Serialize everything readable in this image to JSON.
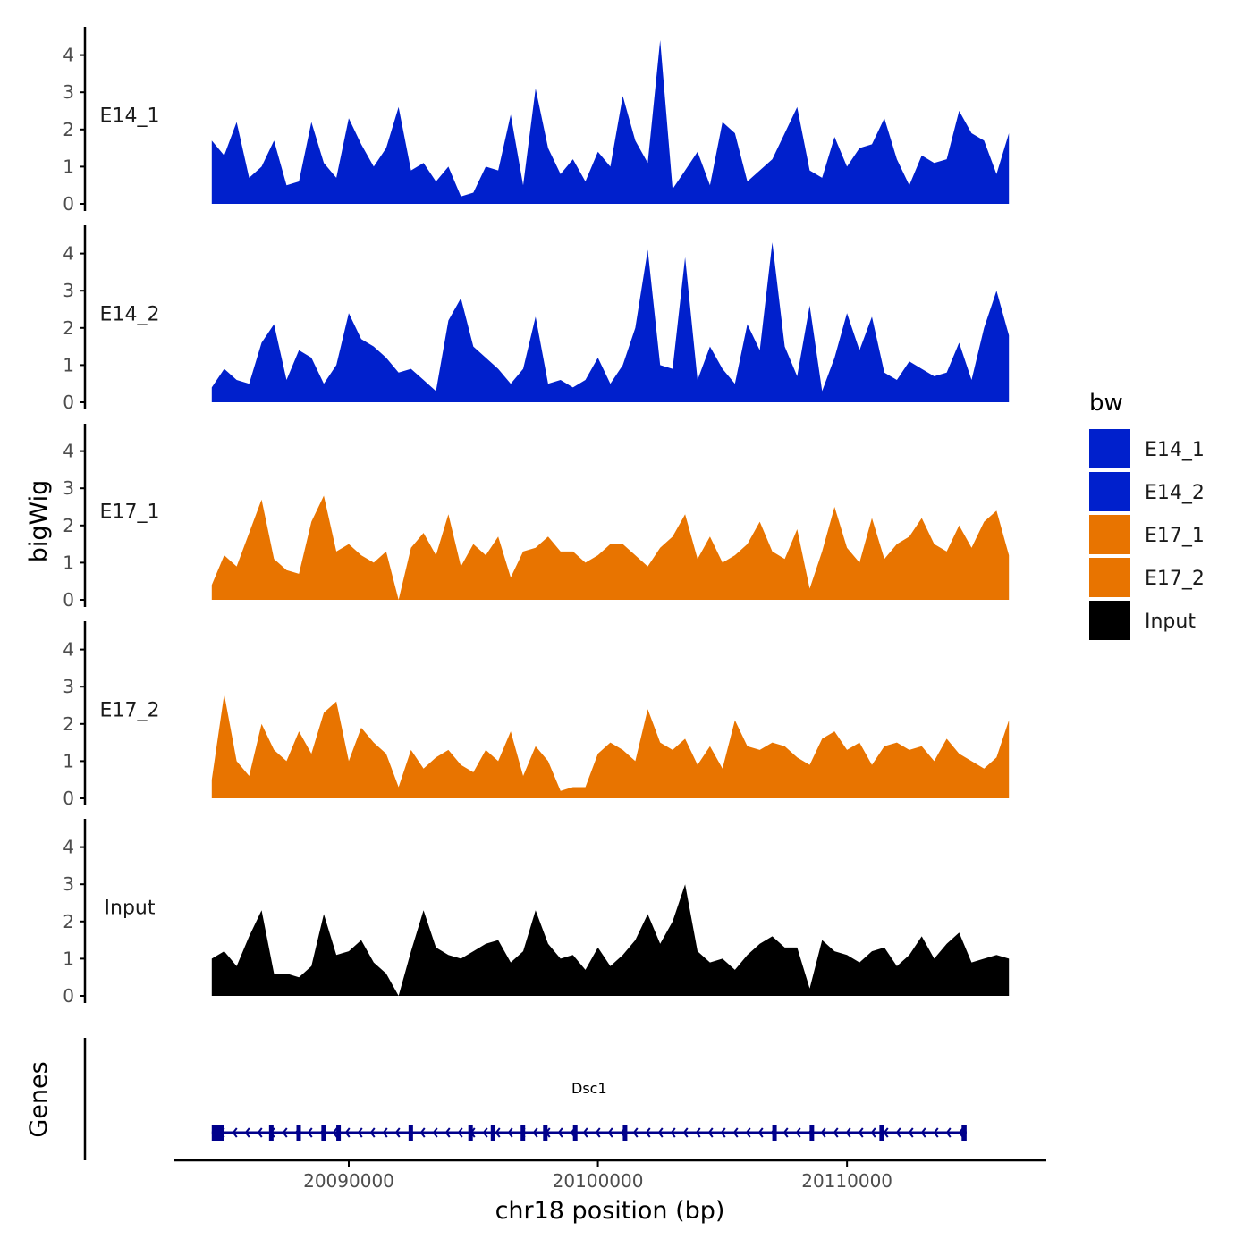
{
  "colors": {
    "blue": "#0020CC",
    "orange": "#E87400",
    "black": "#000000",
    "gene": "#00008B",
    "axis": "#000000",
    "tick_text": "#4d4d4d"
  },
  "chart_data": {
    "type": "area",
    "xlabel": "chr18 position (bp)",
    "ylabel": "bigWig",
    "genes_label": "Genes",
    "xlim": [
      20083000,
      20118000
    ],
    "x_ticks": [
      20090000,
      20100000,
      20110000
    ],
    "x_tick_labels": [
      "20090000",
      "20100000",
      "20110000"
    ],
    "ylim": [
      0,
      4.6
    ],
    "y_ticks": [
      0,
      1,
      2,
      3,
      4
    ],
    "y_tick_labels": [
      "0",
      "1",
      "2",
      "3",
      "4"
    ],
    "x": [
      20084500,
      20085000,
      20085500,
      20086000,
      20086500,
      20087000,
      20087500,
      20088000,
      20088500,
      20089000,
      20089500,
      20090000,
      20090500,
      20091000,
      20091500,
      20092000,
      20092500,
      20093000,
      20093500,
      20094000,
      20094500,
      20095000,
      20095500,
      20096000,
      20096500,
      20097000,
      20097500,
      20098000,
      20098500,
      20099000,
      20099500,
      20100000,
      20100500,
      20101000,
      20101500,
      20102000,
      20102500,
      20103000,
      20103500,
      20104000,
      20104500,
      20105000,
      20105500,
      20106000,
      20106500,
      20107000,
      20107500,
      20108000,
      20108500,
      20109000,
      20109500,
      20110000,
      20110500,
      20111000,
      20111500,
      20112000,
      20112500,
      20113000,
      20113500,
      20114000,
      20114500,
      20115000,
      20115500,
      20116000,
      20116500
    ],
    "series": [
      {
        "name": "E14_1",
        "color": "#0020CC",
        "values": [
          1.7,
          1.3,
          2.2,
          0.7,
          1.0,
          1.7,
          0.5,
          0.6,
          2.2,
          1.1,
          0.7,
          2.3,
          1.6,
          1.0,
          1.5,
          2.6,
          0.9,
          1.1,
          0.6,
          1.0,
          0.2,
          0.3,
          1.0,
          0.9,
          2.4,
          0.5,
          3.1,
          1.5,
          0.8,
          1.2,
          0.6,
          1.4,
          1.0,
          2.9,
          1.7,
          1.1,
          4.4,
          0.4,
          0.9,
          1.4,
          0.5,
          2.2,
          1.9,
          0.6,
          0.9,
          1.2,
          1.9,
          2.6,
          0.9,
          0.7,
          1.8,
          1.0,
          1.5,
          1.6,
          2.3,
          1.2,
          0.5,
          1.3,
          1.1,
          1.2,
          2.5,
          1.9,
          1.7,
          0.8,
          1.9
        ]
      },
      {
        "name": "E14_2",
        "color": "#0020CC",
        "values": [
          0.4,
          0.9,
          0.6,
          0.5,
          1.6,
          2.1,
          0.6,
          1.4,
          1.2,
          0.5,
          1.0,
          2.4,
          1.7,
          1.5,
          1.2,
          0.8,
          0.9,
          0.6,
          0.3,
          2.2,
          2.8,
          1.5,
          1.2,
          0.9,
          0.5,
          0.9,
          2.3,
          0.5,
          0.6,
          0.4,
          0.6,
          1.2,
          0.5,
          1.0,
          2.0,
          4.1,
          1.0,
          0.9,
          3.9,
          0.6,
          1.5,
          0.9,
          0.5,
          2.1,
          1.4,
          4.3,
          1.5,
          0.7,
          2.6,
          0.3,
          1.2,
          2.4,
          1.4,
          2.3,
          0.8,
          0.6,
          1.1,
          0.9,
          0.7,
          0.8,
          1.6,
          0.6,
          2.0,
          3.0,
          1.8
        ]
      },
      {
        "name": "E17_1",
        "color": "#E87400",
        "values": [
          0.4,
          1.2,
          0.9,
          1.8,
          2.7,
          1.1,
          0.8,
          0.7,
          2.1,
          2.8,
          1.3,
          1.5,
          1.2,
          1.0,
          1.3,
          0.0,
          1.4,
          1.8,
          1.2,
          2.3,
          0.9,
          1.5,
          1.2,
          1.7,
          0.6,
          1.3,
          1.4,
          1.7,
          1.3,
          1.3,
          1.0,
          1.2,
          1.5,
          1.5,
          1.2,
          0.9,
          1.4,
          1.7,
          2.3,
          1.1,
          1.7,
          1.0,
          1.2,
          1.5,
          2.1,
          1.3,
          1.1,
          1.9,
          0.3,
          1.3,
          2.5,
          1.4,
          1.0,
          2.2,
          1.1,
          1.5,
          1.7,
          2.2,
          1.5,
          1.3,
          2.0,
          1.4,
          2.1,
          2.4,
          1.2
        ]
      },
      {
        "name": "E17_2",
        "color": "#E87400",
        "values": [
          0.5,
          2.8,
          1.0,
          0.6,
          2.0,
          1.3,
          1.0,
          1.8,
          1.2,
          2.3,
          2.6,
          1.0,
          1.9,
          1.5,
          1.2,
          0.3,
          1.3,
          0.8,
          1.1,
          1.3,
          0.9,
          0.7,
          1.3,
          1.0,
          1.8,
          0.6,
          1.4,
          1.0,
          0.2,
          0.3,
          0.3,
          1.2,
          1.5,
          1.3,
          1.0,
          2.4,
          1.5,
          1.3,
          1.6,
          0.9,
          1.4,
          0.8,
          2.1,
          1.4,
          1.3,
          1.5,
          1.4,
          1.1,
          0.9,
          1.6,
          1.8,
          1.3,
          1.5,
          0.9,
          1.4,
          1.5,
          1.3,
          1.4,
          1.0,
          1.6,
          1.2,
          1.0,
          0.8,
          1.1,
          2.1
        ]
      },
      {
        "name": "Input",
        "color": "#000000",
        "values": [
          1.0,
          1.2,
          0.8,
          1.6,
          2.3,
          0.6,
          0.6,
          0.5,
          0.8,
          2.2,
          1.1,
          1.2,
          1.5,
          0.9,
          0.6,
          0.0,
          1.2,
          2.3,
          1.3,
          1.1,
          1.0,
          1.2,
          1.4,
          1.5,
          0.9,
          1.2,
          2.3,
          1.4,
          1.0,
          1.1,
          0.7,
          1.3,
          0.8,
          1.1,
          1.5,
          2.2,
          1.4,
          2.0,
          3.0,
          1.2,
          0.9,
          1.0,
          0.7,
          1.1,
          1.4,
          1.6,
          1.3,
          1.3,
          0.2,
          1.5,
          1.2,
          1.1,
          0.9,
          1.2,
          1.3,
          0.8,
          1.1,
          1.6,
          1.0,
          1.4,
          1.7,
          0.9,
          1.0,
          1.1,
          1.0
        ]
      }
    ],
    "legend": {
      "title": "bw",
      "position": "right",
      "entries": [
        {
          "label": "E14_1",
          "color": "#0020CC"
        },
        {
          "label": "E14_2",
          "color": "#0020CC"
        },
        {
          "label": "E17_1",
          "color": "#E87400"
        },
        {
          "label": "E17_2",
          "color": "#E87400"
        },
        {
          "label": "Input",
          "color": "#000000"
        }
      ]
    },
    "genes": [
      {
        "name": "Dsc1",
        "start": 20084500,
        "end": 20114800,
        "strand": "-",
        "exons": [
          [
            20084500,
            20085000
          ],
          [
            20086800,
            20086950
          ],
          [
            20087900,
            20088000
          ],
          [
            20088900,
            20089050
          ],
          [
            20089500,
            20089650
          ],
          [
            20092400,
            20092550
          ],
          [
            20094800,
            20094950
          ],
          [
            20095700,
            20095850
          ],
          [
            20096900,
            20097050
          ],
          [
            20097800,
            20097950
          ],
          [
            20099000,
            20099150
          ],
          [
            20101000,
            20101150
          ],
          [
            20107000,
            20107150
          ],
          [
            20108500,
            20108650
          ],
          [
            20111300,
            20111450
          ],
          [
            20114600,
            20114800
          ]
        ]
      }
    ]
  }
}
